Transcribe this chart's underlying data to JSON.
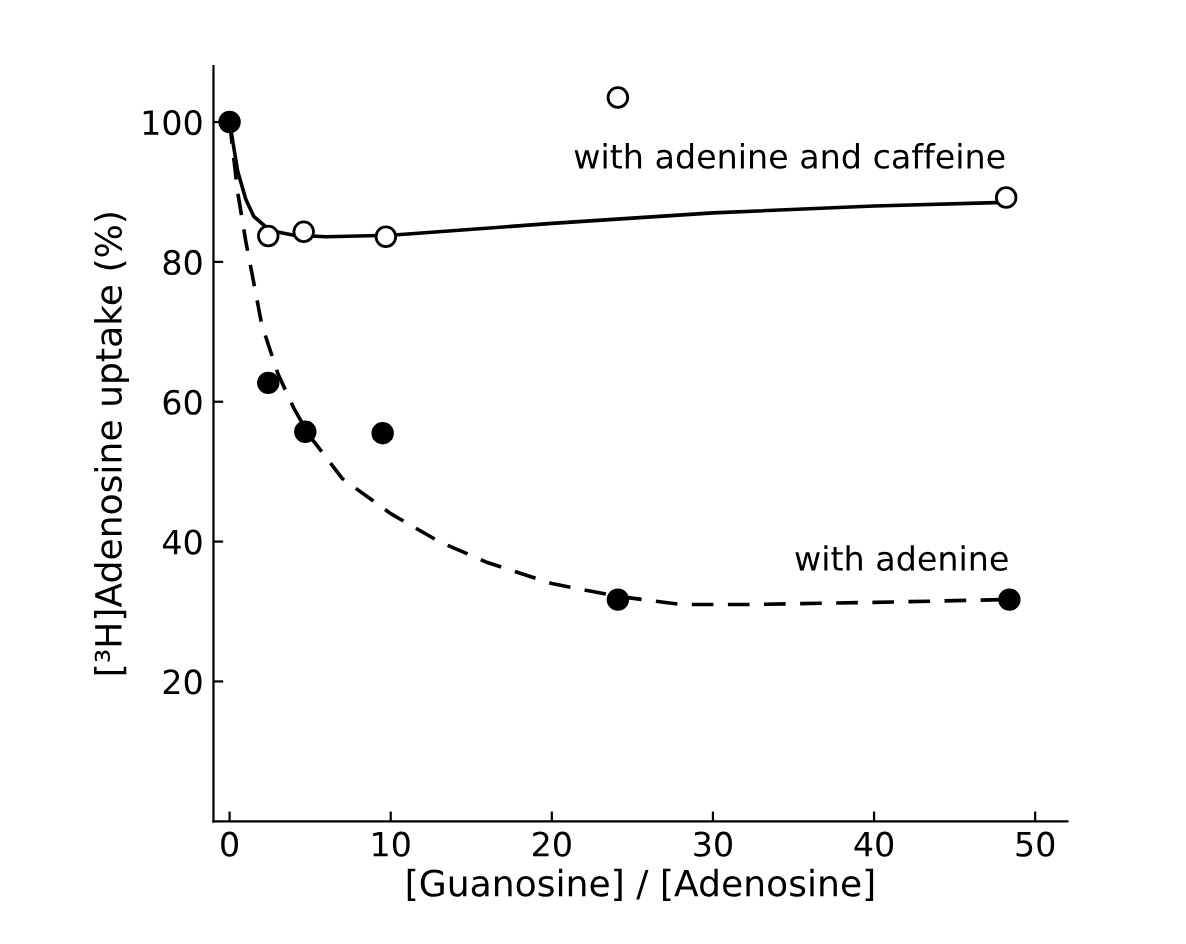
{
  "chart_data": {
    "type": "scatter",
    "xlabel": "[Guanosine] / [Adenosine]",
    "ylabel": "[³H]Adenosine uptake (%)",
    "xlim": [
      -1,
      52
    ],
    "ylim": [
      0,
      108
    ],
    "xticks": [
      0,
      10,
      20,
      30,
      40,
      50
    ],
    "yticks": [
      20,
      40,
      60,
      80,
      100
    ],
    "grid": false,
    "legend": false,
    "series": [
      {
        "name": "with adenine and caffeine",
        "marker": "circle",
        "color": "#ffffff",
        "x": [
          2.4,
          4.6,
          9.7,
          24.1,
          48.2
        ],
        "values": [
          83.7,
          84.3,
          83.6,
          103.5,
          89.2
        ]
      },
      {
        "name": "with adenine",
        "marker": "circle",
        "color": "#000000",
        "x": [
          0,
          2.4,
          4.7,
          9.5,
          24.1,
          48.4
        ],
        "values": [
          100,
          62.7,
          55.7,
          55.5,
          31.7,
          31.7
        ]
      },
      {
        "type": "line",
        "line_style": "solid",
        "color": "#000000",
        "x": [
          0,
          0.5,
          1,
          1.5,
          2.5,
          4,
          6,
          10,
          20,
          30,
          40,
          48
        ],
        "values": [
          100,
          93,
          89,
          86.5,
          84.5,
          83.8,
          83.6,
          83.8,
          85.5,
          87,
          88,
          88.5
        ]
      },
      {
        "type": "line",
        "line_style": "dashed",
        "color": "#000000",
        "x": [
          0,
          0.5,
          1,
          2,
          3,
          4,
          5,
          7,
          10,
          13,
          16,
          20,
          24,
          28,
          32,
          40,
          48
        ],
        "values": [
          100,
          90,
          83,
          71,
          64,
          59,
          55,
          49,
          44,
          40,
          37,
          34,
          32.2,
          31,
          31,
          31.3,
          31.7
        ]
      }
    ]
  }
}
